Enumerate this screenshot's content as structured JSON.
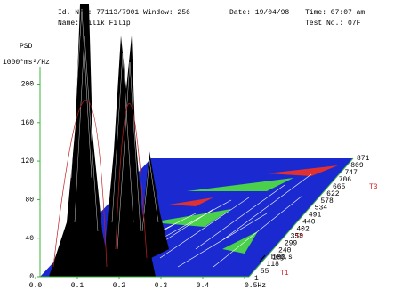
{
  "chart_data": {
    "type": "waterfall",
    "header": {
      "id": "Id. Nr.: 77113/7901 Window: 256",
      "date": "Date: 19/04/98",
      "time": "Time: 07:07 am",
      "name": "Name: Cilik Filip",
      "test": "Test No.: 07F"
    },
    "ylabel": "PSD",
    "yunit": "1000*ms²/Hz",
    "ylim": [
      0,
      218
    ],
    "yticks": [
      0,
      40,
      80,
      120,
      160,
      200
    ],
    "xlim": [
      0,
      0.5
    ],
    "xticks": [
      {
        "value": 0,
        "label": "0.0"
      },
      0.1,
      0.2,
      0.3,
      0.4,
      {
        "value": 0.5,
        "label": "0.5Hz"
      }
    ],
    "zlabel": "Tbeg,s",
    "zcategories": [
      "1",
      "55",
      "118",
      "180",
      "240",
      "299",
      "358",
      "402",
      "440",
      "491",
      "534",
      "578",
      "622",
      "665",
      "706",
      "747",
      "809",
      "871"
    ],
    "markers": [
      "T1",
      "T2",
      "T3"
    ],
    "grid": false
  }
}
